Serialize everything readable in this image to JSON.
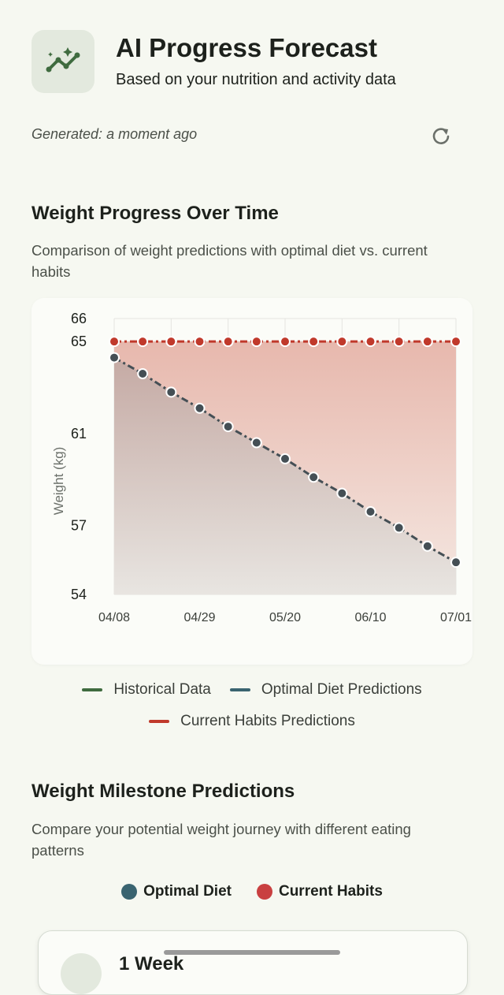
{
  "header": {
    "title": "AI Progress Forecast",
    "subtitle": "Based on your nutrition and activity data"
  },
  "generated": "Generated: a moment ago",
  "chart_section": {
    "title": "Weight Progress Over Time",
    "description": "Comparison of weight predictions with optimal diet vs. current habits"
  },
  "chart_data": {
    "type": "line",
    "y_label": "Weight (kg)",
    "x": [
      "04/08",
      null,
      null,
      "04/29",
      null,
      null,
      "05/20",
      null,
      null,
      "06/10",
      null,
      null,
      "07/01"
    ],
    "series": [
      {
        "name": "Historical Data",
        "color": "#3f6b3f",
        "values": [
          null,
          null,
          null,
          null,
          null,
          null,
          null,
          null,
          null,
          null,
          null,
          null,
          null
        ]
      },
      {
        "name": "Optimal Diet Predictions",
        "color": "#3a6470",
        "values": [
          64.3,
          63.6,
          62.8,
          62.1,
          61.3,
          60.6,
          59.9,
          59.1,
          58.4,
          57.6,
          56.9,
          56.1,
          55.4
        ]
      },
      {
        "name": "Current Habits Predictions",
        "color": "#c0392b",
        "values": [
          65,
          65,
          65,
          65,
          65,
          65,
          65,
          65,
          65,
          65,
          65,
          65,
          65
        ]
      }
    ],
    "ylim": [
      54,
      66
    ],
    "yticks": [
      54,
      57,
      61,
      65,
      66
    ],
    "grid": true
  },
  "milestones": {
    "title": "Weight Milestone Predictions",
    "description": "Compare your potential weight journey with different eating patterns",
    "legend": [
      {
        "name": "Optimal Diet",
        "color": "#3a6470"
      },
      {
        "name": "Current Habits",
        "color": "#c94040"
      }
    ],
    "cards": [
      {
        "label": "1 Week"
      }
    ]
  }
}
